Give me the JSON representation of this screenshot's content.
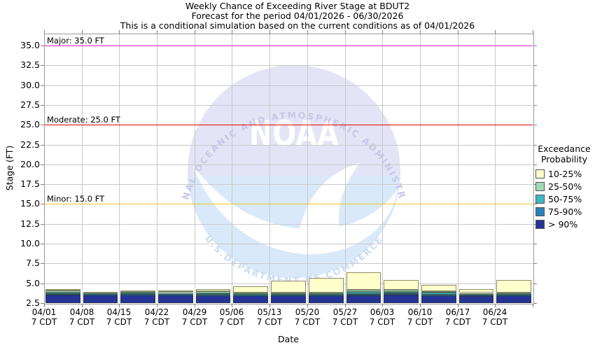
{
  "header": {
    "title_line1": "Weekly Chance of Exceeding River Stage at BDUT2",
    "title_line2": "Forecast for the period 04/01/2026 - 06/30/2026",
    "title_line3": "This is a conditional simulation based on the current conditions as of 04/01/2026"
  },
  "watermark": {
    "text": "NOAA",
    "arc_top": "NATIONAL OCEANIC AND ATMOSPHERIC ADMINISTRATION",
    "arc_bottom": "U.S.DEPARTMENT OF COMMERCE"
  },
  "chart_data": {
    "type": "bar",
    "stacked": true,
    "title": "Weekly Chance of Exceeding River Stage at BDUT2",
    "xlabel": "Date",
    "ylabel": "Stage (FT)",
    "ylim": [
      2.5,
      36.5
    ],
    "grid": true,
    "yticks": [
      "2.5",
      "5.0",
      "7.5",
      "10.0",
      "12.5",
      "15.0",
      "17.5",
      "20.0",
      "22.5",
      "25.0",
      "27.5",
      "30.0",
      "32.5",
      "35.0"
    ],
    "categories": [
      "04/01",
      "04/08",
      "04/15",
      "04/22",
      "04/29",
      "05/06",
      "05/13",
      "05/20",
      "05/27",
      "06/03",
      "06/10",
      "06/17",
      "06/24"
    ],
    "tick_time_label": "7 CDT",
    "bar_base_stage_ft": 2.5,
    "series": [
      {
        "name": "> 90%",
        "color": "#253494",
        "cumulative_tops": [
          3.6,
          3.6,
          3.58,
          3.55,
          3.55,
          3.45,
          3.5,
          3.5,
          3.5,
          3.55,
          3.5,
          3.4,
          3.45
        ]
      },
      {
        "name": "75-90%",
        "color": "#2C7FB8",
        "cumulative_tops": [
          3.7,
          3.65,
          3.65,
          3.65,
          3.6,
          3.55,
          3.6,
          3.6,
          3.67,
          3.72,
          3.58,
          3.52,
          3.55
        ]
      },
      {
        "name": "50-75%",
        "color": "#41B6C4",
        "cumulative_tops": [
          3.85,
          3.75,
          3.8,
          3.78,
          3.76,
          3.65,
          3.7,
          3.72,
          3.94,
          3.9,
          3.8,
          3.72,
          3.7
        ]
      },
      {
        "name": "25-50%",
        "color": "#A1DAB4",
        "cumulative_tops": [
          4.1,
          3.9,
          4.05,
          4.0,
          3.96,
          3.8,
          3.85,
          3.86,
          4.2,
          4.15,
          3.96,
          3.78,
          3.82
        ]
      },
      {
        "name": "10-25%",
        "color": "#FFFFCC",
        "cumulative_tops": [
          4.3,
          3.95,
          4.1,
          4.06,
          4.26,
          4.6,
          5.3,
          5.7,
          6.35,
          5.45,
          4.8,
          4.26,
          5.4
        ]
      }
    ],
    "thresholds": [
      {
        "name": "major",
        "label": "Major: 35.0 FT",
        "value": 35.0,
        "color": "#ff14e6"
      },
      {
        "name": "moderate",
        "label": "Moderate: 25.0 FT",
        "value": 25.0,
        "color": "#e60000"
      },
      {
        "name": "minor",
        "label": "Minor: 15.0 FT",
        "value": 15.0,
        "color": "#eec52a"
      }
    ],
    "legend": {
      "title_line1": "Exceedance",
      "title_line2": "Probability",
      "position": "right",
      "items": [
        {
          "label": "10-25%",
          "color": "#FFFFCC"
        },
        {
          "label": "25-50%",
          "color": "#A1DAB4"
        },
        {
          "label": "50-75%",
          "color": "#41B6C4"
        },
        {
          "label": "75-90%",
          "color": "#2C7FB8"
        },
        {
          "label": "> 90%",
          "color": "#253494"
        }
      ]
    }
  }
}
